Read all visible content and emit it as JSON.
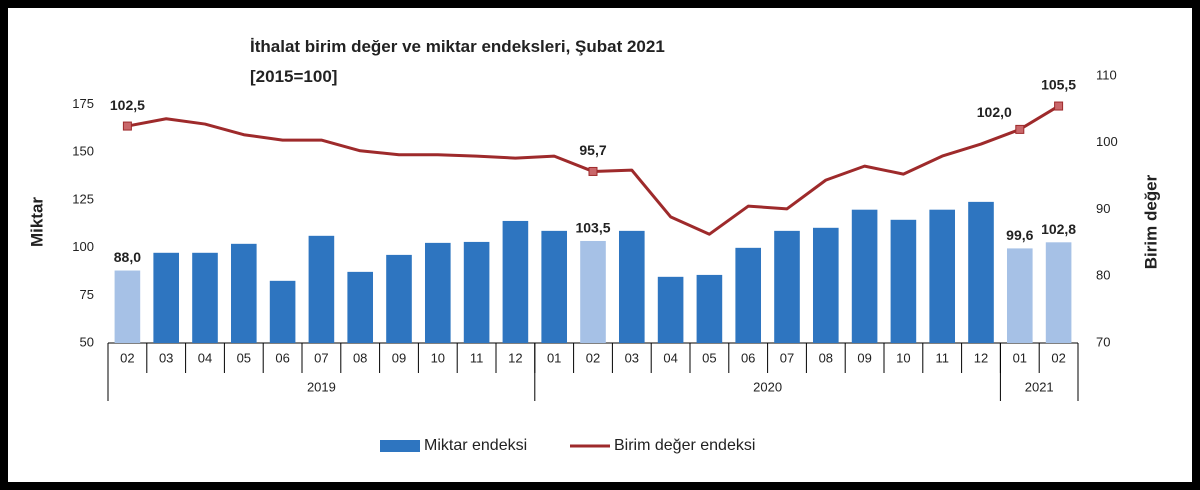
{
  "chart_data": {
    "type": "bar_line",
    "title": "İthalat birim değer ve miktar endeksleri, Şubat 2021",
    "subtitle": "[2015=100]",
    "y_label": "Miktar",
    "y2_label": "Birim değer",
    "categories": [
      "02",
      "03",
      "04",
      "05",
      "06",
      "07",
      "08",
      "09",
      "10",
      "11",
      "12",
      "01",
      "02",
      "03",
      "04",
      "05",
      "06",
      "07",
      "08",
      "09",
      "10",
      "11",
      "12",
      "01",
      "02"
    ],
    "groups": [
      {
        "label": "2019",
        "span": 11
      },
      {
        "label": "2020",
        "span": 12
      },
      {
        "label": "2021",
        "span": 2
      }
    ],
    "series": [
      {
        "name": "Miktar endeksi",
        "type": "bar",
        "color": "#2e75c0",
        "colors": [
          "#a6c1e6",
          "#2e75c0",
          "#2e75c0",
          "#2e75c0",
          "#2e75c0",
          "#2e75c0",
          "#2e75c0",
          "#2e75c0",
          "#2e75c0",
          "#2e75c0",
          "#2e75c0",
          "#2e75c0",
          "#a6c1e6",
          "#2e75c0",
          "#2e75c0",
          "#2e75c0",
          "#2e75c0",
          "#2e75c0",
          "#2e75c0",
          "#2e75c0",
          "#2e75c0",
          "#2e75c0",
          "#2e75c0",
          "#a6c1e6",
          "#a6c1e6"
        ],
        "values": [
          88.0,
          97.3,
          97.3,
          102,
          82.6,
          106.2,
          87.3,
          96.2,
          102.5,
          103,
          114,
          108.8,
          103.5,
          108.8,
          84.7,
          85.7,
          99.9,
          108.8,
          110.4,
          119.9,
          114.6,
          119.9,
          124,
          99.6,
          102.8
        ],
        "value_labels": [
          "88,0",
          null,
          null,
          null,
          null,
          null,
          null,
          null,
          null,
          null,
          null,
          null,
          "103,5",
          null,
          null,
          null,
          null,
          null,
          null,
          null,
          null,
          null,
          null,
          "99,6",
          "102,8"
        ]
      },
      {
        "name": "Birim değer endeksi",
        "type": "line",
        "axis": "y2",
        "color": "#9e2a2b",
        "marker_color": "#c9676a",
        "values": [
          102.5,
          103.6,
          102.8,
          101.2,
          100.4,
          100.4,
          98.8,
          98.2,
          98.2,
          98.0,
          97.7,
          98.0,
          95.7,
          95.9,
          88.9,
          86.3,
          90.5,
          90.1,
          94.4,
          96.5,
          95.3,
          98.0,
          99.8,
          102.0,
          105.5
        ],
        "value_labels": [
          "102,5",
          null,
          null,
          null,
          null,
          null,
          null,
          null,
          null,
          null,
          null,
          null,
          "95,7",
          null,
          null,
          null,
          null,
          null,
          null,
          null,
          null,
          null,
          null,
          "102,0",
          "105,5"
        ]
      }
    ],
    "ylim": [
      50,
      190
    ],
    "yticks": [
      50,
      75,
      100,
      125,
      150,
      175
    ],
    "y2lim": [
      70,
      110
    ],
    "y2ticks": [
      70,
      80,
      90,
      100,
      110
    ],
    "grid": false
  }
}
